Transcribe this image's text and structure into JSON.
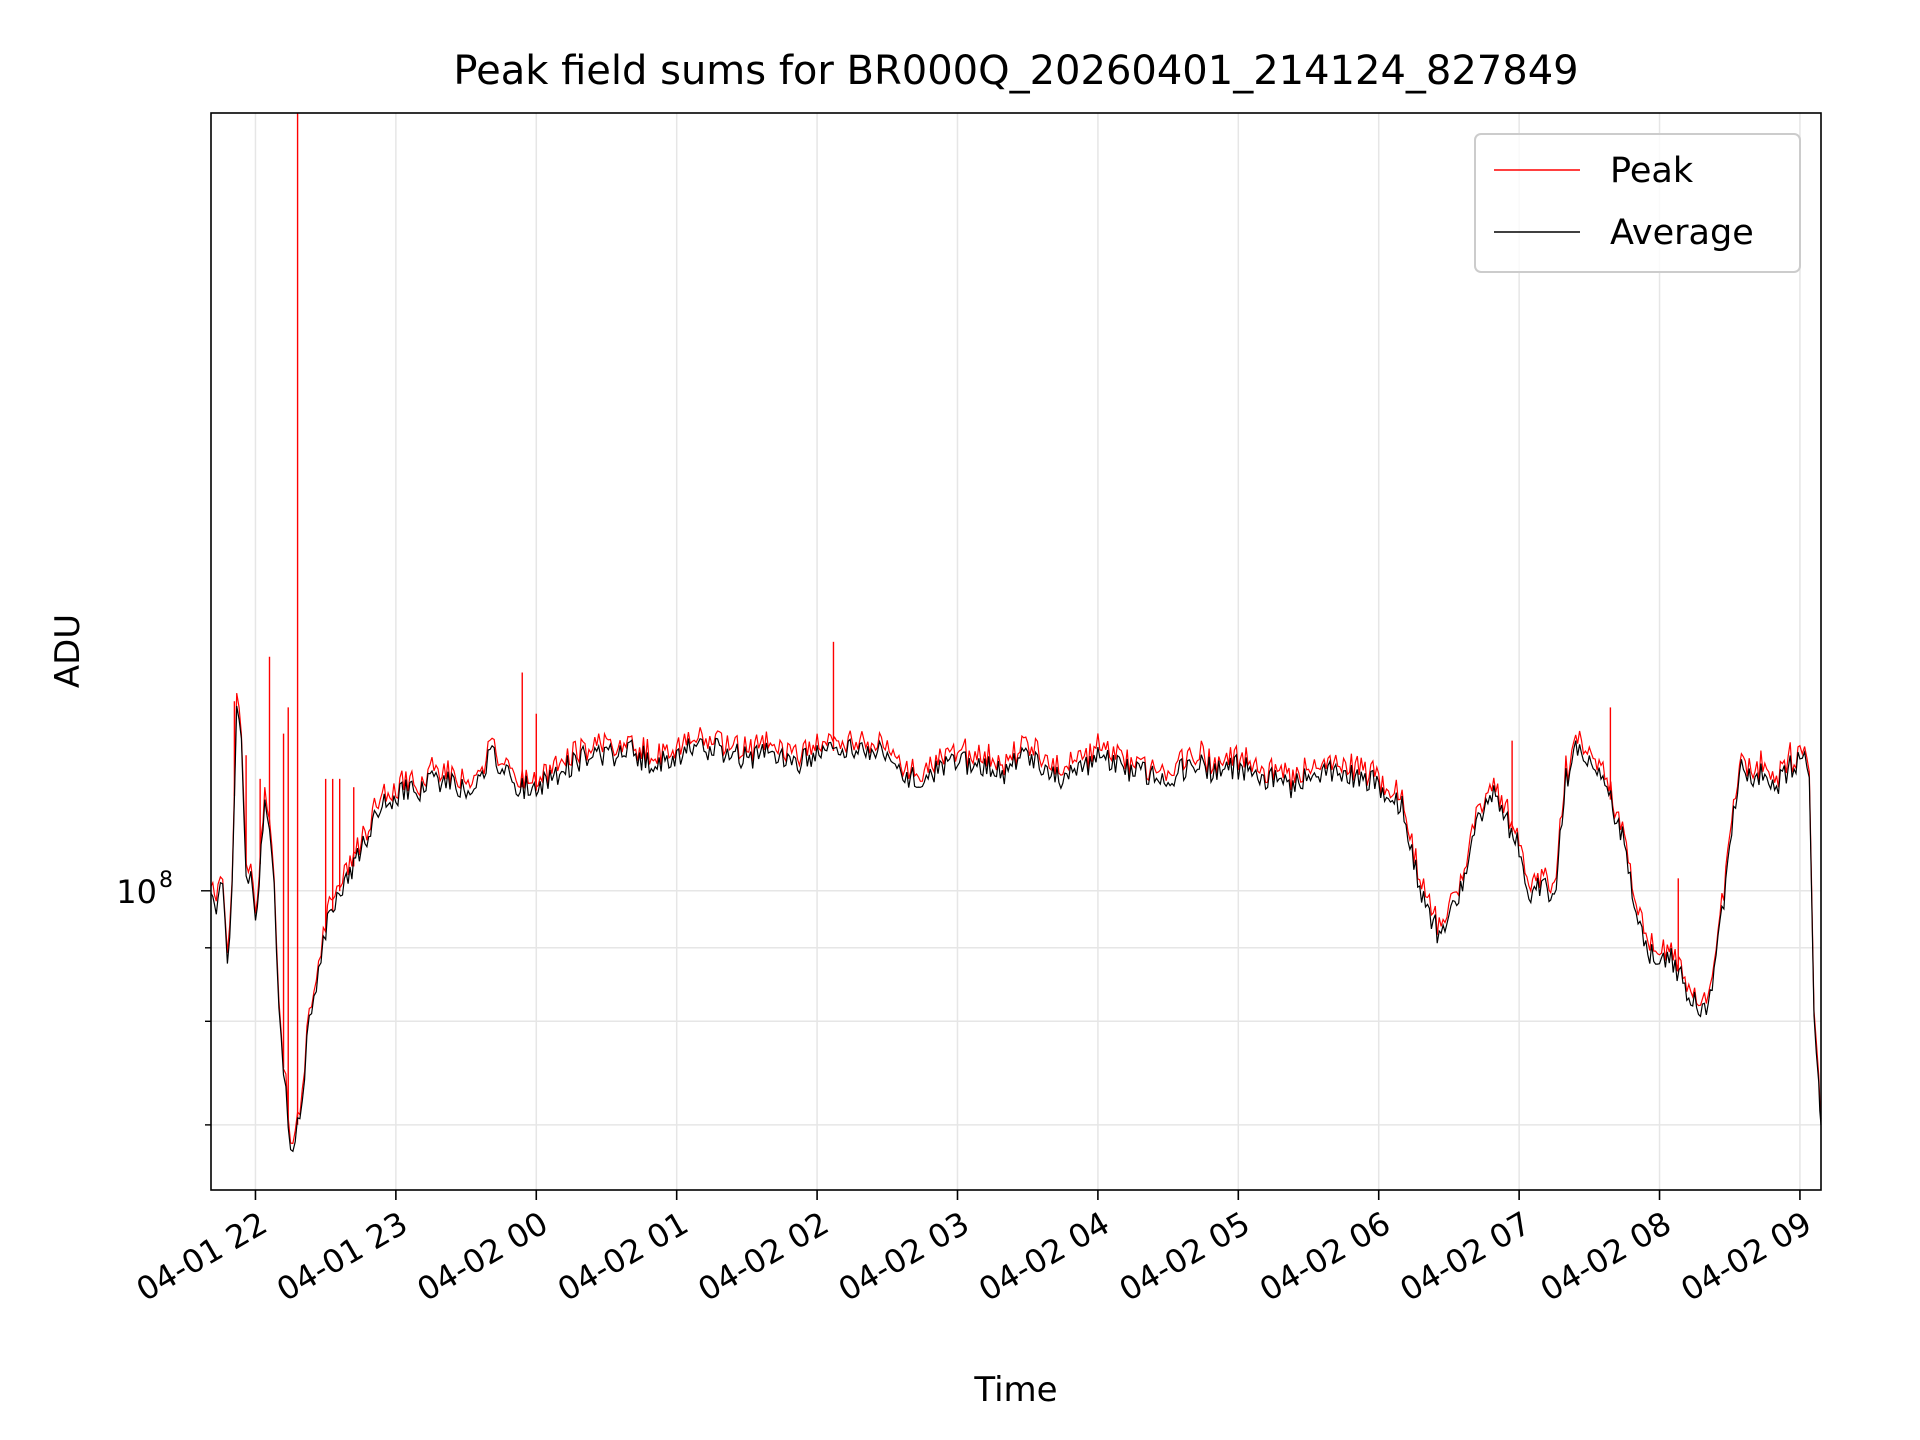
{
  "chart_data": {
    "type": "line",
    "title": "Peak field sums for BR000Q_20260401_214124_827849",
    "xlabel": "Time",
    "ylabel": "ADU",
    "y_scale": "log",
    "y_tick_label": "10^8",
    "y_tick_value": 100000000,
    "grid": true,
    "legend_position": "top-right",
    "xlim": [
      "04-01 21:41",
      "04-02 09:09"
    ],
    "ylim": [
      31000000,
      2100000000
    ],
    "x_ticks": [
      "04-01 22",
      "04-01 23",
      "04-02 00",
      "04-02 01",
      "04-02 02",
      "04-02 03",
      "04-02 04",
      "04-02 05",
      "04-02 06",
      "04-02 07",
      "04-02 08",
      "04-02 09"
    ],
    "x_tick_times": [
      "04-01 22:00",
      "04-01 23:00",
      "04-02 00:00",
      "04-02 01:00",
      "04-02 02:00",
      "04-02 03:00",
      "04-02 04:00",
      "04-02 05:00",
      "04-02 06:00",
      "04-02 07:00",
      "04-02 08:00",
      "04-02 09:00"
    ],
    "series": [
      {
        "name": "Average",
        "color": "#000000",
        "times": [
          "04-01 21:41",
          "04-01 21:44",
          "04-01 21:46",
          "04-01 21:48",
          "04-01 21:50",
          "04-01 21:52",
          "04-01 21:54",
          "04-01 21:56",
          "04-01 21:58",
          "04-01 22:00",
          "04-01 22:04",
          "04-01 22:06",
          "04-01 22:08",
          "04-01 22:10",
          "04-01 22:12",
          "04-01 22:14",
          "04-01 22:16",
          "04-01 22:18",
          "04-01 22:20",
          "04-01 22:22",
          "04-01 22:24",
          "04-01 22:26",
          "04-01 22:28",
          "04-01 22:30",
          "04-01 22:34",
          "04-01 22:38",
          "04-01 22:42",
          "04-01 22:46",
          "04-01 22:50",
          "04-01 22:55",
          "04-01 23:00",
          "04-01 23:06",
          "04-01 23:12",
          "04-01 23:18",
          "04-01 23:24",
          "04-01 23:30",
          "04-01 23:36",
          "04-01 23:42",
          "04-01 23:48",
          "04-01 23:54",
          "04-02 00:00",
          "04-02 00:05",
          "04-02 00:10",
          "04-02 00:15",
          "04-02 00:20",
          "04-02 00:30",
          "04-02 00:40",
          "04-02 00:50",
          "04-02 01:00",
          "04-02 01:10",
          "04-02 01:20",
          "04-02 01:30",
          "04-02 01:40",
          "04-02 01:50",
          "04-02 02:00",
          "04-02 02:10",
          "04-02 02:20",
          "04-02 02:30",
          "04-02 02:40",
          "04-02 02:50",
          "04-02 03:00",
          "04-02 03:10",
          "04-02 03:20",
          "04-02 03:30",
          "04-02 03:40",
          "04-02 03:50",
          "04-02 04:00",
          "04-02 04:10",
          "04-02 04:20",
          "04-02 04:30",
          "04-02 04:40",
          "04-02 04:50",
          "04-02 05:00",
          "04-02 05:10",
          "04-02 05:20",
          "04-02 05:30",
          "04-02 05:40",
          "04-02 05:50",
          "04-02 06:00",
          "04-02 06:10",
          "04-02 06:15",
          "04-02 06:20",
          "04-02 06:25",
          "04-02 06:30",
          "04-02 06:35",
          "04-02 06:40",
          "04-02 06:45",
          "04-02 06:50",
          "04-02 06:55",
          "04-02 07:00",
          "04-02 07:05",
          "04-02 07:08",
          "04-02 07:12",
          "04-02 07:15",
          "04-02 07:20",
          "04-02 07:25",
          "04-02 07:30",
          "04-02 07:35",
          "04-02 07:40",
          "04-02 07:45",
          "04-02 07:50",
          "04-02 07:55",
          "04-02 08:00",
          "04-02 08:05",
          "04-02 08:10",
          "04-02 08:15",
          "04-02 08:20",
          "04-02 08:25",
          "04-02 08:30",
          "04-02 08:35",
          "04-02 08:40",
          "04-02 08:45",
          "04-02 08:50",
          "04-02 08:55",
          "04-02 09:00",
          "04-02 09:02",
          "04-02 09:04",
          "04-02 09:06",
          "04-02 09:08",
          "04-02 09:09"
        ],
        "values": [
          100000000,
          93000000,
          108000000,
          72000000,
          105000000,
          200000000,
          175000000,
          110000000,
          103000000,
          88000000,
          140000000,
          130000000,
          100000000,
          63000000,
          50000000,
          40000000,
          36000000,
          40000000,
          43000000,
          56000000,
          64000000,
          70000000,
          78000000,
          85000000,
          95000000,
          105000000,
          110000000,
          120000000,
          130000000,
          140000000,
          145000000,
          148000000,
          150000000,
          155000000,
          152000000,
          148000000,
          160000000,
          170000000,
          155000000,
          150000000,
          148000000,
          155000000,
          160000000,
          165000000,
          168000000,
          170000000,
          172000000,
          165000000,
          170000000,
          175000000,
          172000000,
          168000000,
          170000000,
          165000000,
          168000000,
          175000000,
          172000000,
          170000000,
          155000000,
          160000000,
          165000000,
          163000000,
          158000000,
          170000000,
          155000000,
          160000000,
          168000000,
          162000000,
          158000000,
          155000000,
          165000000,
          160000000,
          162000000,
          158000000,
          150000000,
          155000000,
          158000000,
          155000000,
          152000000,
          140000000,
          110000000,
          95000000,
          85000000,
          88000000,
          100000000,
          125000000,
          140000000,
          145000000,
          130000000,
          120000000,
          97000000,
          103000000,
          100000000,
          96000000,
          155000000,
          175000000,
          162000000,
          155000000,
          140000000,
          120000000,
          90000000,
          78000000,
          76000000,
          77000000,
          70000000,
          64000000,
          63000000,
          80000000,
          120000000,
          170000000,
          150000000,
          160000000,
          150000000,
          160000000,
          170000000,
          165000000,
          150000000,
          60000000,
          47000000,
          40000000
        ]
      },
      {
        "name": "Peak",
        "color": "#ff0000",
        "spikes": [
          {
            "time": "04-01 21:51",
            "value": 210000000
          },
          {
            "time": "04-01 21:56",
            "value": 170000000
          },
          {
            "time": "04-01 22:02",
            "value": 155000000
          },
          {
            "time": "04-01 22:06",
            "value": 250000000
          },
          {
            "time": "04-01 22:12",
            "value": 185000000
          },
          {
            "time": "04-01 22:14",
            "value": 205000000
          },
          {
            "time": "04-01 22:18",
            "value": 2100000000
          },
          {
            "time": "04-01 22:30",
            "value": 155000000
          },
          {
            "time": "04-01 22:33",
            "value": 155000000
          },
          {
            "time": "04-01 22:36",
            "value": 155000000
          },
          {
            "time": "04-01 22:42",
            "value": 150000000
          },
          {
            "time": "04-01 23:54",
            "value": 235000000
          },
          {
            "time": "04-02 00:00",
            "value": 200000000
          },
          {
            "time": "04-02 02:07",
            "value": 265000000
          },
          {
            "time": "04-02 06:57",
            "value": 180000000
          },
          {
            "time": "04-02 07:39",
            "value": 205000000
          },
          {
            "time": "04-02 08:08",
            "value": 105000000
          }
        ]
      }
    ]
  }
}
